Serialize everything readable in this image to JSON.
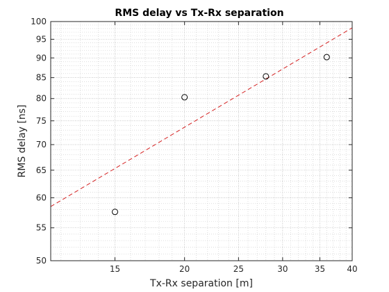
{
  "chart_data": {
    "type": "scatter",
    "title": "RMS delay vs Tx-Rx separation",
    "xlabel": "Tx-Rx separation [m]",
    "ylabel": "RMS delay [ns]",
    "xscale": "log",
    "yscale": "log",
    "xlim": [
      11.5,
      40
    ],
    "ylim": [
      50,
      100
    ],
    "xticks": [
      15,
      20,
      25,
      30,
      35,
      40
    ],
    "yticks": [
      50,
      55,
      60,
      65,
      70,
      75,
      80,
      85,
      90,
      95,
      100
    ],
    "grid": true,
    "series": [
      {
        "kind": "scatter",
        "marker": "circle",
        "color": "#000000",
        "x": [
          15,
          20,
          28,
          36
        ],
        "y": [
          57.6,
          80.3,
          85.3,
          90.2
        ]
      },
      {
        "kind": "line",
        "style": "dashed",
        "color": "#d42020",
        "x": [
          11.5,
          40
        ],
        "y": [
          58.5,
          98.2
        ]
      }
    ]
  }
}
